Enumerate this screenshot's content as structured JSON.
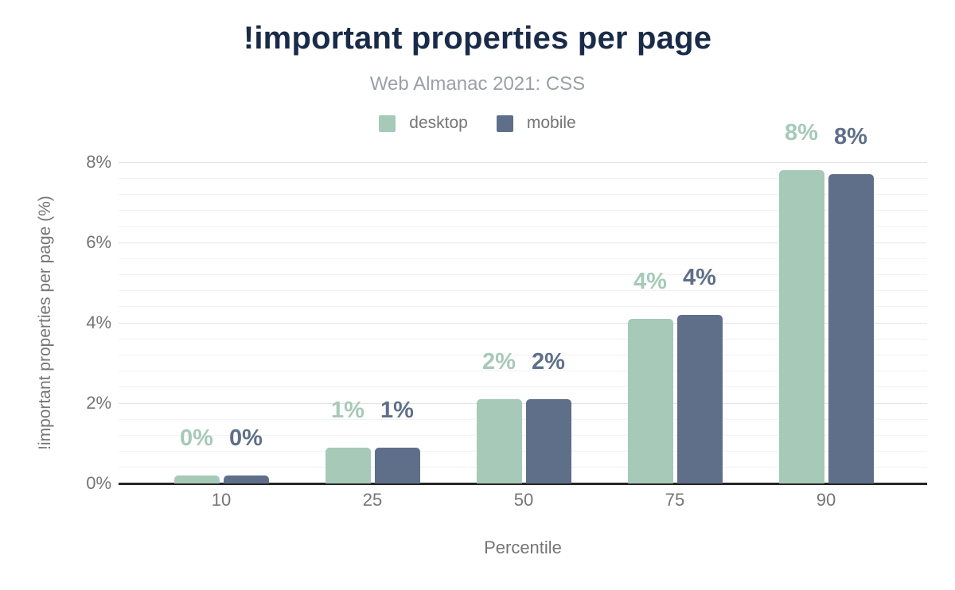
{
  "header": {
    "title": "!important properties per page",
    "subtitle": "Web Almanac 2021: CSS"
  },
  "colors": {
    "title": "#1a2b49",
    "subtitle": "#9aa0a6",
    "axis_text": "#757575",
    "grid_major": "#e4e4e4",
    "grid_minor": "#f2f2f2",
    "axis_line": "#262626",
    "desktop": "#a6c9b8",
    "mobile": "#5f6f8a"
  },
  "chart_data": {
    "type": "bar",
    "title": "!important properties per page",
    "subtitle": "Web Almanac 2021: CSS",
    "categories": [
      "10",
      "25",
      "50",
      "75",
      "90"
    ],
    "xlabel": "Percentile",
    "ylabel": "!important properties per page (%)",
    "ylim": [
      0,
      8
    ],
    "y_major_ticks": [
      0,
      2,
      4,
      6,
      8
    ],
    "y_tick_labels": [
      "0%",
      "2%",
      "4%",
      "6%",
      "8%"
    ],
    "y_minor_step": 0.4,
    "grid": true,
    "legend_position": "top",
    "series": [
      {
        "name": "desktop",
        "color": "#a6c9b8",
        "values": [
          0.2,
          0.9,
          2.1,
          4.1,
          7.8
        ],
        "labels": [
          "0%",
          "1%",
          "2%",
          "4%",
          "8%"
        ]
      },
      {
        "name": "mobile",
        "color": "#5f6f8a",
        "values": [
          0.2,
          0.9,
          2.1,
          4.2,
          7.7
        ],
        "labels": [
          "0%",
          "1%",
          "2%",
          "4%",
          "8%"
        ]
      }
    ]
  }
}
